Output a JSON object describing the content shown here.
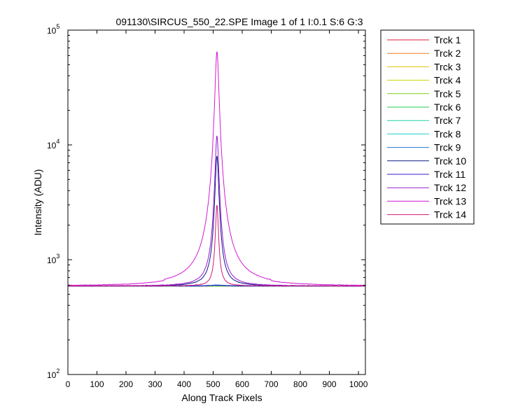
{
  "chart_data": {
    "type": "line",
    "title": "091130\\SIRCUS_550_22.SPE  Image 1 of 1  I:0.1  S:6  G:3",
    "xlabel": "Along Track Pixels",
    "ylabel": "Intensity (ADU)",
    "xlim": [
      0,
      1024
    ],
    "ylim": [
      100,
      100000
    ],
    "yscale": "log",
    "x_ticks": [
      0,
      100,
      200,
      300,
      400,
      500,
      600,
      700,
      800,
      900,
      1000
    ],
    "x_tick_labels": [
      "0",
      "100",
      "200",
      "300",
      "400",
      "500",
      "600",
      "700",
      "800",
      "900",
      "1000"
    ],
    "y_ticks": [
      {
        "value": 100,
        "base": "10",
        "exp": "2"
      },
      {
        "value": 1000,
        "base": "10",
        "exp": "3"
      },
      {
        "value": 10000,
        "base": "10",
        "exp": "4"
      },
      {
        "value": 100000,
        "base": "10",
        "exp": "5"
      }
    ],
    "grid": false,
    "legend_position": "outside-right",
    "baseline": 590,
    "peak_position": 513,
    "series": [
      {
        "name": "Trck 1",
        "color": "#e31a3a",
        "peak": 590
      },
      {
        "name": "Trck 2",
        "color": "#f07a1a",
        "peak": 590
      },
      {
        "name": "Trck 3",
        "color": "#e6c400",
        "peak": 590
      },
      {
        "name": "Trck 4",
        "color": "#c8d400",
        "peak": 590
      },
      {
        "name": "Trck 5",
        "color": "#7ad21a",
        "peak": 590
      },
      {
        "name": "Trck 6",
        "color": "#1ad24a",
        "peak": 595
      },
      {
        "name": "Trck 7",
        "color": "#1ad2a0",
        "peak": 595
      },
      {
        "name": "Trck 8",
        "color": "#1ad2d2",
        "peak": 600
      },
      {
        "name": "Trck 9",
        "color": "#1a7ad2",
        "peak": 600
      },
      {
        "name": "Trck 10",
        "color": "#0a1a8a",
        "peak": 8000
      },
      {
        "name": "Trck 11",
        "color": "#3a1ad2",
        "peak": 600
      },
      {
        "name": "Trck 12",
        "color": "#9a1ad2",
        "peak": 12000
      },
      {
        "name": "Trck 13",
        "color": "#d21ad2",
        "peak": 65000
      },
      {
        "name": "Trck 14",
        "color": "#d21a7a",
        "peak": 3000
      }
    ]
  }
}
